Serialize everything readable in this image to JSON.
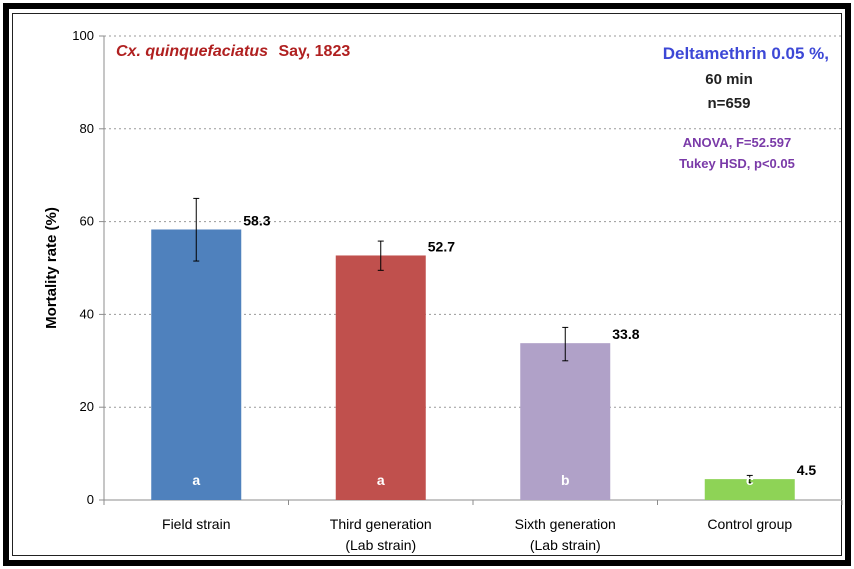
{
  "chart_data": {
    "type": "bar",
    "title_species": "Cx. quinquefaciatus",
    "title_author": "Say, 1823",
    "treatment": "Deltamethrin 0.05 %,",
    "duration": "60 min",
    "sample_size": "n=659",
    "stat_test": "ANOVA, F=52.597",
    "posthoc": "Tukey HSD, p<0.05",
    "ylabel": "Mortality rate (%)",
    "ylim": [
      0,
      100
    ],
    "yticks": [
      0,
      20,
      40,
      60,
      80,
      100
    ],
    "grid": true,
    "categories": [
      [
        "Field strain"
      ],
      [
        "Third generation",
        "(Lab strain)"
      ],
      [
        "Sixth generation",
        "(Lab strain)"
      ],
      [
        "Control group"
      ]
    ],
    "values": [
      58.3,
      52.7,
      33.8,
      4.5
    ],
    "value_labels": [
      "58.3",
      "52.7",
      "33.8",
      "4.5"
    ],
    "error_low": [
      51.5,
      49.5,
      30.0,
      3.7
    ],
    "error_high": [
      65.0,
      55.8,
      37.2,
      5.3
    ],
    "group_letters": [
      "a",
      "a",
      "b",
      "c"
    ],
    "colors": [
      "#4f81bd",
      "#c0504d",
      "#b0a1c8",
      "#8ed356"
    ]
  }
}
